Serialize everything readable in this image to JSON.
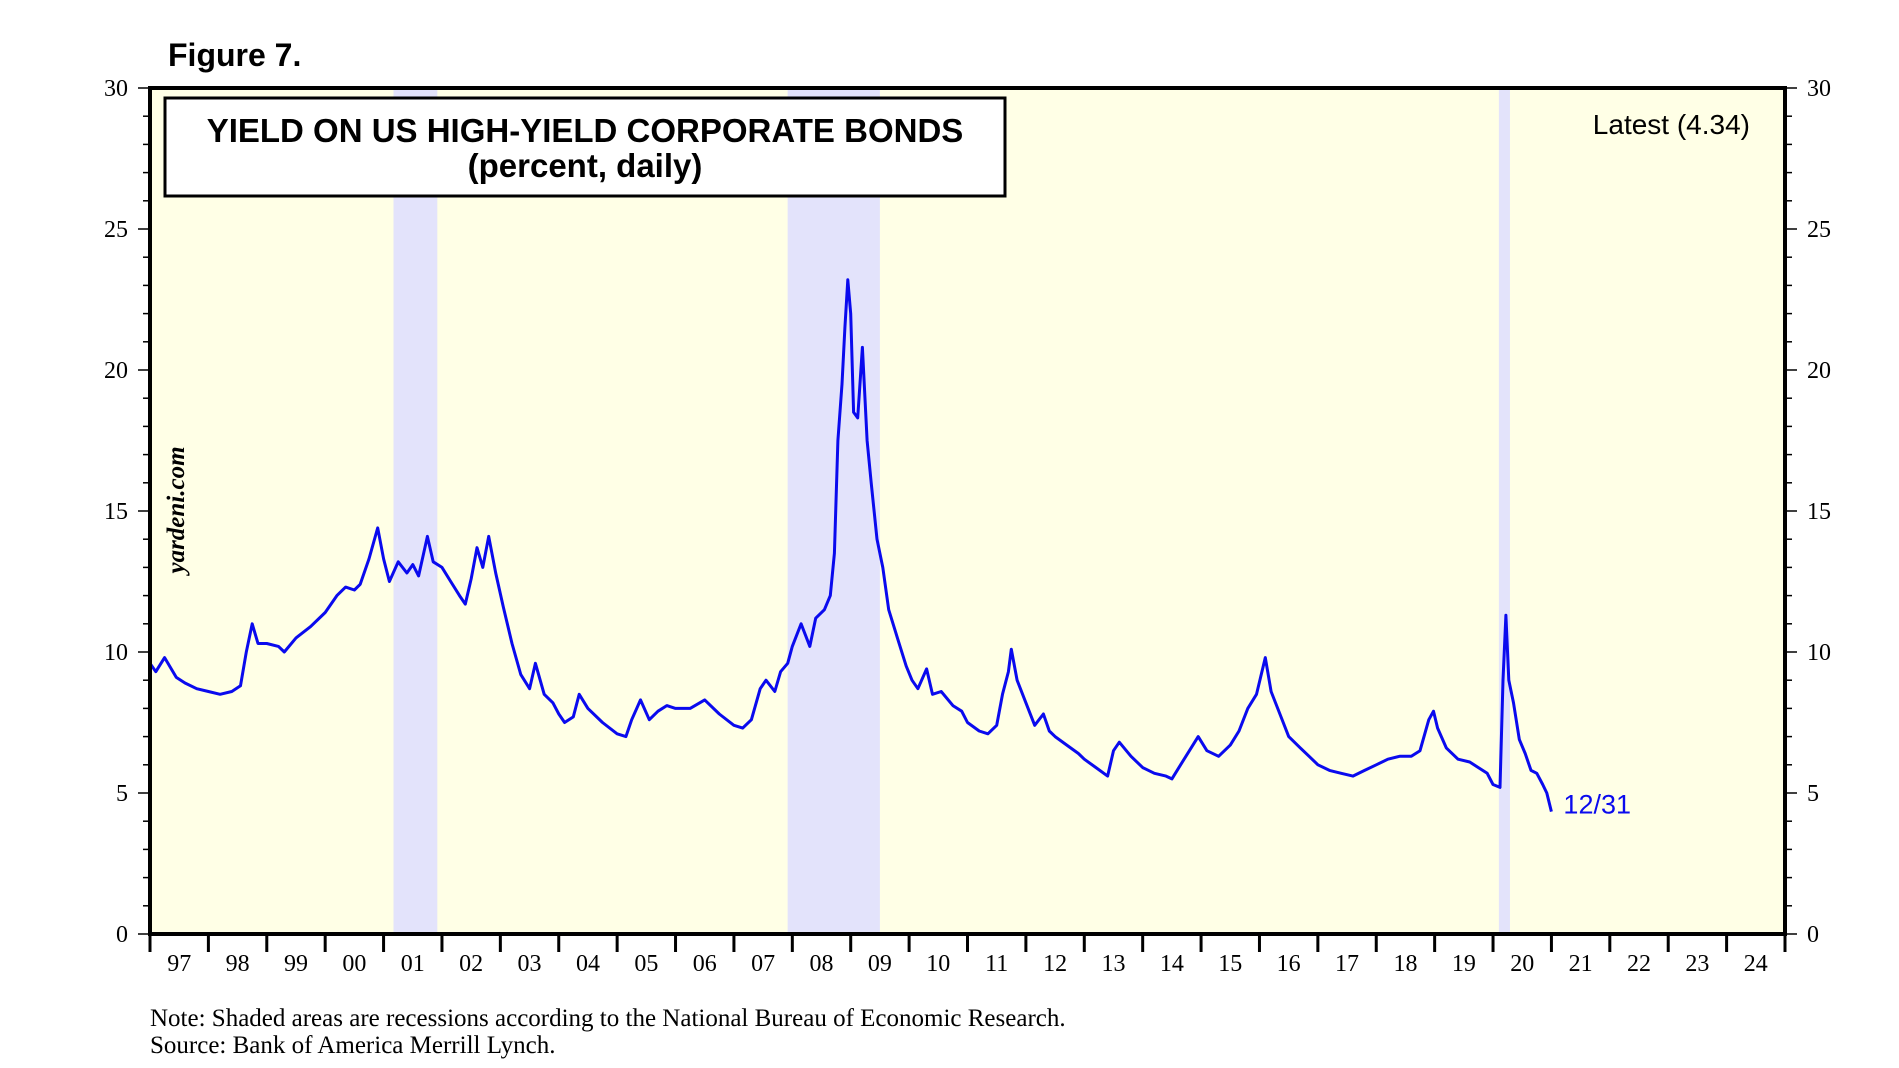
{
  "figure_label": "Figure 7.",
  "watermark": "yardeni.com",
  "notes": [
    "Note: Shaded areas are recessions according to the National Bureau of Economic Research.",
    "Source: Bank of America Merrill Lynch."
  ],
  "colors": {
    "plot_background": "#ffffe6",
    "recession_shade": "#e3e3fb",
    "series_line": "#0a0aee",
    "axis": "#000000"
  },
  "chart_data": {
    "type": "line",
    "title": "YIELD ON US HIGH-YIELD CORPORATE BONDS",
    "subtitle": "(percent, daily)",
    "latest_label": "Latest (4.34)",
    "end_label": "12/31",
    "ylim": [
      0,
      30
    ],
    "y_ticks": [
      0,
      5,
      10,
      15,
      20,
      25,
      30
    ],
    "xlim": [
      1997,
      2025
    ],
    "x_tick_labels": [
      "97",
      "98",
      "99",
      "00",
      "01",
      "02",
      "03",
      "04",
      "05",
      "06",
      "07",
      "08",
      "09",
      "10",
      "11",
      "12",
      "13",
      "14",
      "15",
      "16",
      "17",
      "18",
      "19",
      "20",
      "21",
      "22",
      "23",
      "24"
    ],
    "grid": false,
    "recessions": [
      [
        2001.17,
        2001.92
      ],
      [
        2007.92,
        2009.5
      ],
      [
        2020.1,
        2020.29
      ]
    ],
    "series": [
      {
        "values": [
          [
            1997.0,
            9.6
          ],
          [
            1997.1,
            9.3
          ],
          [
            1997.25,
            9.8
          ],
          [
            1997.45,
            9.1
          ],
          [
            1997.6,
            8.9
          ],
          [
            1997.8,
            8.7
          ],
          [
            1998.0,
            8.6
          ],
          [
            1998.2,
            8.5
          ],
          [
            1998.4,
            8.6
          ],
          [
            1998.55,
            8.8
          ],
          [
            1998.65,
            10.0
          ],
          [
            1998.75,
            11.0
          ],
          [
            1998.85,
            10.3
          ],
          [
            1999.0,
            10.3
          ],
          [
            1999.2,
            10.2
          ],
          [
            1999.3,
            10.0
          ],
          [
            1999.5,
            10.5
          ],
          [
            1999.75,
            10.9
          ],
          [
            2000.0,
            11.4
          ],
          [
            2000.2,
            12.0
          ],
          [
            2000.35,
            12.3
          ],
          [
            2000.5,
            12.2
          ],
          [
            2000.6,
            12.4
          ],
          [
            2000.75,
            13.3
          ],
          [
            2000.9,
            14.4
          ],
          [
            2001.0,
            13.3
          ],
          [
            2001.1,
            12.5
          ],
          [
            2001.25,
            13.2
          ],
          [
            2001.4,
            12.8
          ],
          [
            2001.5,
            13.1
          ],
          [
            2001.6,
            12.7
          ],
          [
            2001.75,
            14.1
          ],
          [
            2001.85,
            13.2
          ],
          [
            2002.0,
            13.0
          ],
          [
            2002.15,
            12.5
          ],
          [
            2002.3,
            12.0
          ],
          [
            2002.4,
            11.7
          ],
          [
            2002.5,
            12.6
          ],
          [
            2002.6,
            13.7
          ],
          [
            2002.7,
            13.0
          ],
          [
            2002.8,
            14.1
          ],
          [
            2002.92,
            12.8
          ],
          [
            2003.05,
            11.6
          ],
          [
            2003.2,
            10.3
          ],
          [
            2003.35,
            9.2
          ],
          [
            2003.5,
            8.7
          ],
          [
            2003.6,
            9.6
          ],
          [
            2003.75,
            8.5
          ],
          [
            2003.9,
            8.2
          ],
          [
            2004.0,
            7.8
          ],
          [
            2004.1,
            7.5
          ],
          [
            2004.25,
            7.7
          ],
          [
            2004.35,
            8.5
          ],
          [
            2004.5,
            8.0
          ],
          [
            2004.75,
            7.5
          ],
          [
            2005.0,
            7.1
          ],
          [
            2005.15,
            7.0
          ],
          [
            2005.25,
            7.6
          ],
          [
            2005.4,
            8.3
          ],
          [
            2005.55,
            7.6
          ],
          [
            2005.7,
            7.9
          ],
          [
            2005.85,
            8.1
          ],
          [
            2006.0,
            8.0
          ],
          [
            2006.25,
            8.0
          ],
          [
            2006.5,
            8.3
          ],
          [
            2006.75,
            7.8
          ],
          [
            2007.0,
            7.4
          ],
          [
            2007.15,
            7.3
          ],
          [
            2007.3,
            7.6
          ],
          [
            2007.45,
            8.7
          ],
          [
            2007.55,
            9.0
          ],
          [
            2007.7,
            8.6
          ],
          [
            2007.8,
            9.3
          ],
          [
            2007.92,
            9.6
          ],
          [
            2008.0,
            10.2
          ],
          [
            2008.15,
            11.0
          ],
          [
            2008.3,
            10.2
          ],
          [
            2008.4,
            11.2
          ],
          [
            2008.55,
            11.5
          ],
          [
            2008.65,
            12.0
          ],
          [
            2008.72,
            13.5
          ],
          [
            2008.78,
            17.5
          ],
          [
            2008.85,
            19.5
          ],
          [
            2008.9,
            21.5
          ],
          [
            2008.95,
            23.2
          ],
          [
            2009.0,
            22.0
          ],
          [
            2009.05,
            18.5
          ],
          [
            2009.12,
            18.3
          ],
          [
            2009.2,
            20.8
          ],
          [
            2009.28,
            17.5
          ],
          [
            2009.35,
            16.0
          ],
          [
            2009.45,
            14.0
          ],
          [
            2009.55,
            13.0
          ],
          [
            2009.65,
            11.5
          ],
          [
            2009.8,
            10.5
          ],
          [
            2009.95,
            9.5
          ],
          [
            2010.05,
            9.0
          ],
          [
            2010.15,
            8.7
          ],
          [
            2010.3,
            9.4
          ],
          [
            2010.4,
            8.5
          ],
          [
            2010.55,
            8.6
          ],
          [
            2010.75,
            8.1
          ],
          [
            2010.9,
            7.9
          ],
          [
            2011.0,
            7.5
          ],
          [
            2011.2,
            7.2
          ],
          [
            2011.35,
            7.1
          ],
          [
            2011.5,
            7.4
          ],
          [
            2011.6,
            8.5
          ],
          [
            2011.7,
            9.3
          ],
          [
            2011.75,
            10.1
          ],
          [
            2011.85,
            9.0
          ],
          [
            2012.0,
            8.2
          ],
          [
            2012.15,
            7.4
          ],
          [
            2012.3,
            7.8
          ],
          [
            2012.4,
            7.2
          ],
          [
            2012.5,
            7.0
          ],
          [
            2012.7,
            6.7
          ],
          [
            2012.9,
            6.4
          ],
          [
            2013.0,
            6.2
          ],
          [
            2013.2,
            5.9
          ],
          [
            2013.4,
            5.6
          ],
          [
            2013.5,
            6.5
          ],
          [
            2013.6,
            6.8
          ],
          [
            2013.8,
            6.3
          ],
          [
            2014.0,
            5.9
          ],
          [
            2014.2,
            5.7
          ],
          [
            2014.4,
            5.6
          ],
          [
            2014.5,
            5.5
          ],
          [
            2014.65,
            6.0
          ],
          [
            2014.8,
            6.5
          ],
          [
            2014.95,
            7.0
          ],
          [
            2015.1,
            6.5
          ],
          [
            2015.3,
            6.3
          ],
          [
            2015.5,
            6.7
          ],
          [
            2015.65,
            7.2
          ],
          [
            2015.8,
            8.0
          ],
          [
            2015.95,
            8.5
          ],
          [
            2016.1,
            9.8
          ],
          [
            2016.2,
            8.6
          ],
          [
            2016.35,
            7.8
          ],
          [
            2016.5,
            7.0
          ],
          [
            2016.7,
            6.6
          ],
          [
            2016.85,
            6.3
          ],
          [
            2017.0,
            6.0
          ],
          [
            2017.2,
            5.8
          ],
          [
            2017.4,
            5.7
          ],
          [
            2017.6,
            5.6
          ],
          [
            2017.8,
            5.8
          ],
          [
            2018.0,
            6.0
          ],
          [
            2018.2,
            6.2
          ],
          [
            2018.4,
            6.3
          ],
          [
            2018.6,
            6.3
          ],
          [
            2018.75,
            6.5
          ],
          [
            2018.9,
            7.6
          ],
          [
            2018.98,
            7.9
          ],
          [
            2019.05,
            7.3
          ],
          [
            2019.2,
            6.6
          ],
          [
            2019.4,
            6.2
          ],
          [
            2019.6,
            6.1
          ],
          [
            2019.75,
            5.9
          ],
          [
            2019.9,
            5.7
          ],
          [
            2020.0,
            5.3
          ],
          [
            2020.12,
            5.2
          ],
          [
            2020.17,
            9.0
          ],
          [
            2020.22,
            11.3
          ],
          [
            2020.27,
            9.0
          ],
          [
            2020.35,
            8.2
          ],
          [
            2020.45,
            6.9
          ],
          [
            2020.55,
            6.4
          ],
          [
            2020.65,
            5.8
          ],
          [
            2020.75,
            5.7
          ],
          [
            2020.85,
            5.3
          ],
          [
            2020.92,
            5.0
          ],
          [
            2021.0,
            4.34
          ]
        ]
      }
    ]
  }
}
